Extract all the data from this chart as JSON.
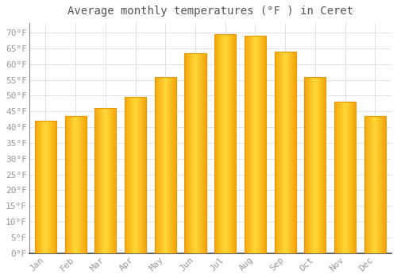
{
  "title": "Average monthly temperatures (°F ) in Ceret",
  "months": [
    "Jan",
    "Feb",
    "Mar",
    "Apr",
    "May",
    "Jun",
    "Jul",
    "Aug",
    "Sep",
    "Oct",
    "Nov",
    "Dec"
  ],
  "values": [
    42,
    43.5,
    46,
    49.5,
    56,
    63.5,
    69.5,
    69,
    64,
    56,
    48,
    43.5
  ],
  "bar_color_center": "#FFD040",
  "bar_color_edge": "#F5A800",
  "background_color": "#FFFFFF",
  "grid_color": "#DDDDDD",
  "text_color": "#999999",
  "ylim": [
    0,
    73
  ],
  "yticks": [
    0,
    5,
    10,
    15,
    20,
    25,
    30,
    35,
    40,
    45,
    50,
    55,
    60,
    65,
    70
  ],
  "title_fontsize": 10,
  "tick_fontsize": 8,
  "font_family": "monospace",
  "bar_width": 0.72
}
